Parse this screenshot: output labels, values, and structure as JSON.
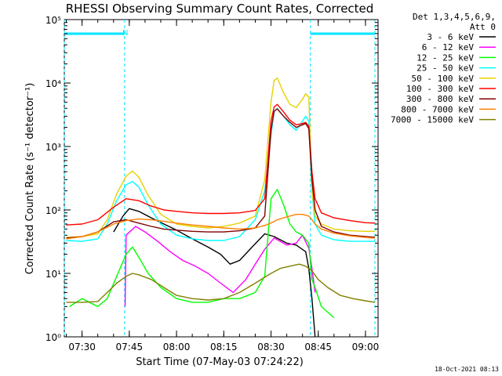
{
  "chart_data": {
    "type": "line",
    "title": "RHESSI Observing Summary Count Rates, Corrected",
    "xlabel": "Start Time (07-May-03 07:24:22)",
    "ylabel": "Corrected Count Rate (s⁻¹ detector⁻¹)",
    "yscale": "log",
    "xlim": [
      "07:24:22",
      "09:04:00"
    ],
    "ylim": [
      1,
      100000
    ],
    "x_ticks": [
      "07:30",
      "07:45",
      "08:00",
      "08:15",
      "08:30",
      "08:45",
      "09:00"
    ],
    "y_ticks": [
      "10⁰",
      "10¹",
      "10²",
      "10³",
      "10⁴",
      "10⁵"
    ],
    "legend_header": [
      "Det 1,3,4,5,6,9,",
      "Att 0"
    ],
    "legend_position": "right",
    "annotation": "N",
    "footer_timestamp": "18-Oct-2021 08:13",
    "night_markers": [
      {
        "start": "07:24:22",
        "end": "07:43:30",
        "level": 60000
      },
      {
        "start": "08:42:30",
        "end": "09:03:00",
        "level": 60000
      }
    ],
    "series": [
      {
        "name": "3 - 6 keV",
        "color": "#000000",
        "x": [
          "07:40",
          "07:43",
          "07:45",
          "07:48",
          "07:52",
          "07:56",
          "08:00",
          "08:05",
          "08:10",
          "08:14",
          "08:17",
          "08:20",
          "08:24",
          "08:28",
          "08:31",
          "08:35",
          "08:38",
          "08:41",
          "08:42",
          "08:43",
          "08:44"
        ],
        "y": [
          45,
          80,
          105,
          95,
          75,
          60,
          48,
          35,
          26,
          20,
          14,
          16,
          26,
          42,
          38,
          30,
          28,
          22,
          12,
          4,
          1
        ]
      },
      {
        "name": "6 - 12 keV",
        "color": "#ff00ff",
        "x": [
          "07:43:40",
          "07:44",
          "07:47",
          "07:50",
          "07:54",
          "07:58",
          "08:02",
          "08:06",
          "08:10",
          "08:14",
          "08:18",
          "08:22",
          "08:25",
          "08:28",
          "08:31",
          "08:35",
          "08:38",
          "08:40",
          "08:42",
          "08:43",
          "08:44"
        ],
        "y": [
          3,
          40,
          55,
          45,
          32,
          22,
          16,
          13,
          10,
          7,
          5,
          8,
          14,
          24,
          36,
          28,
          30,
          40,
          25,
          12,
          5
        ]
      },
      {
        "name": "12 - 25 keV",
        "color": "#00ff00",
        "x": [
          "07:26",
          "07:30",
          "07:35",
          "07:38",
          "07:41",
          "07:44",
          "07:46",
          "07:48",
          "07:51",
          "07:55",
          "08:00",
          "08:05",
          "08:10",
          "08:15",
          "08:20",
          "08:25",
          "08:28",
          "08:30",
          "08:32",
          "08:34",
          "08:36",
          "08:38",
          "08:40",
          "08:42",
          "08:43",
          "08:44",
          "08:46",
          "08:50"
        ],
        "y": [
          3,
          4,
          3,
          4,
          9,
          20,
          26,
          18,
          10,
          6,
          4,
          3.5,
          3.5,
          4,
          4,
          5,
          9,
          150,
          210,
          120,
          60,
          45,
          40,
          30,
          8,
          6,
          3,
          2
        ]
      },
      {
        "name": "25 - 50 keV",
        "color": "#00ffff",
        "x": [
          "07:25",
          "07:30",
          "07:35",
          "07:38",
          "07:41",
          "07:44",
          "07:46",
          "07:48",
          "07:51",
          "07:55",
          "08:00",
          "08:05",
          "08:10",
          "08:15",
          "08:20",
          "08:25",
          "08:28",
          "08:30",
          "08:31",
          "08:32",
          "08:34",
          "08:36",
          "08:38",
          "08:40",
          "08:41",
          "08:42",
          "08:43",
          "08:44",
          "08:46",
          "08:50",
          "08:55",
          "09:00",
          "09:03"
        ],
        "y": [
          33,
          32,
          35,
          60,
          140,
          250,
          280,
          230,
          120,
          60,
          40,
          35,
          33,
          33,
          38,
          70,
          200,
          1500,
          3500,
          4000,
          3000,
          2200,
          1800,
          2500,
          3000,
          2500,
          200,
          60,
          40,
          34,
          32,
          32,
          32
        ]
      },
      {
        "name": "50 - 100 keV",
        "color": "#e6d200",
        "x": [
          "07:25",
          "07:30",
          "07:35",
          "07:38",
          "07:41",
          "07:44",
          "07:46",
          "07:48",
          "07:51",
          "07:55",
          "08:00",
          "08:05",
          "08:10",
          "08:15",
          "08:20",
          "08:25",
          "08:28",
          "08:30",
          "08:31",
          "08:32",
          "08:34",
          "08:36",
          "08:38",
          "08:40",
          "08:41",
          "08:42",
          "08:43",
          "08:44",
          "08:46",
          "08:50",
          "08:55",
          "09:00",
          "09:03"
        ],
        "y": [
          37,
          38,
          42,
          70,
          180,
          340,
          410,
          330,
          170,
          85,
          60,
          55,
          52,
          55,
          62,
          80,
          300,
          5000,
          11000,
          12000,
          7000,
          4600,
          4100,
          5500,
          6800,
          6000,
          200,
          80,
          60,
          50,
          47,
          46,
          46
        ]
      },
      {
        "name": "100 - 300 keV",
        "color": "#ff0000",
        "x": [
          "07:25",
          "07:30",
          "07:35",
          "07:40",
          "07:44",
          "07:48",
          "07:52",
          "07:56",
          "08:00",
          "08:05",
          "08:10",
          "08:15",
          "08:20",
          "08:25",
          "08:28",
          "08:30",
          "08:31",
          "08:32",
          "08:34",
          "08:36",
          "08:38",
          "08:40",
          "08:41",
          "08:42",
          "08:43",
          "08:44",
          "08:46",
          "08:50",
          "08:55",
          "09:00",
          "09:03"
        ],
        "y": [
          58,
          60,
          70,
          110,
          150,
          140,
          115,
          100,
          95,
          90,
          88,
          88,
          90,
          98,
          150,
          2500,
          4200,
          4600,
          3500,
          2600,
          2200,
          2300,
          2400,
          2100,
          400,
          150,
          90,
          75,
          68,
          63,
          62
        ]
      },
      {
        "name": "300 - 800 keV",
        "color": "#800000",
        "x": [
          "07:25",
          "07:30",
          "07:35",
          "07:40",
          "07:44",
          "07:48",
          "07:52",
          "07:56",
          "08:00",
          "08:05",
          "08:10",
          "08:15",
          "08:20",
          "08:25",
          "08:28",
          "08:30",
          "08:31",
          "08:32",
          "08:34",
          "08:36",
          "08:38",
          "08:40",
          "08:41",
          "08:42",
          "08:43",
          "08:44",
          "08:46",
          "08:50",
          "08:55",
          "09:00",
          "09:03"
        ],
        "y": [
          36,
          38,
          45,
          65,
          70,
          62,
          55,
          50,
          48,
          46,
          45,
          45,
          47,
          52,
          80,
          1800,
          3600,
          3900,
          3000,
          2400,
          2000,
          2200,
          2300,
          1900,
          300,
          100,
          55,
          45,
          40,
          38,
          37
        ]
      },
      {
        "name": "800 - 7000 keV",
        "color": "#ff8000",
        "x": [
          "07:25",
          "07:30",
          "07:35",
          "07:40",
          "07:44",
          "07:48",
          "07:52",
          "07:56",
          "08:00",
          "08:05",
          "08:10",
          "08:15",
          "08:20",
          "08:25",
          "08:28",
          "08:30",
          "08:32",
          "08:34",
          "08:36",
          "08:38",
          "08:40",
          "08:42",
          "08:43",
          "08:44",
          "08:46",
          "08:50",
          "08:55",
          "09:00",
          "09:03"
        ],
        "y": [
          35,
          38,
          45,
          60,
          68,
          72,
          70,
          66,
          62,
          58,
          55,
          52,
          50,
          52,
          57,
          62,
          70,
          75,
          80,
          85,
          85,
          80,
          70,
          60,
          50,
          43,
          39,
          37,
          36
        ]
      },
      {
        "name": "7000 - 15000 keV",
        "color": "#808000",
        "x": [
          "07:25",
          "07:30",
          "07:35",
          "07:38",
          "07:41",
          "07:44",
          "07:46",
          "07:48",
          "07:52",
          "07:56",
          "08:00",
          "08:05",
          "08:10",
          "08:15",
          "08:20",
          "08:25",
          "08:30",
          "08:33",
          "08:36",
          "08:39",
          "08:41",
          "08:43",
          "08:45",
          "08:48",
          "08:52",
          "08:56",
          "09:00",
          "09:03"
        ],
        "y": [
          3.5,
          3.5,
          3.6,
          5,
          7,
          9,
          10,
          9.5,
          8,
          6,
          4.5,
          4,
          3.8,
          4,
          5,
          7,
          10,
          12,
          13,
          14,
          13,
          11,
          8,
          6,
          4.5,
          4,
          3.7,
          3.5
        ]
      }
    ]
  }
}
